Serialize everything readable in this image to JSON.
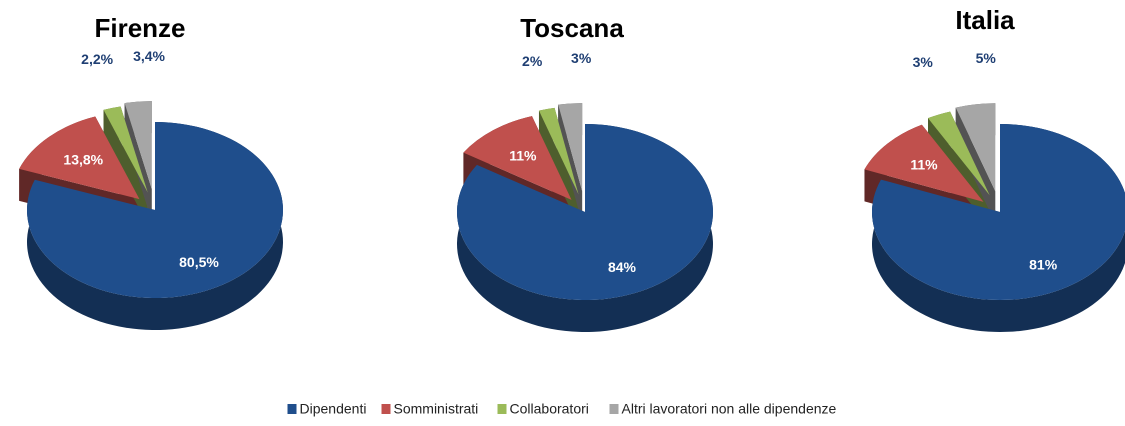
{
  "chart_data": [
    {
      "type": "pie",
      "title": "Firenze",
      "categories": [
        "Dipendenti",
        "Somministrati",
        "Collaboratori",
        "Altri lavoratori non alle dipendenze"
      ],
      "values": [
        80.5,
        13.8,
        2.2,
        3.4
      ],
      "value_labels": [
        "80,5%",
        "13,8%",
        "2,2%",
        "3,4%"
      ],
      "colors": [
        "#1f4e8c",
        "#c0504d",
        "#9bbb59",
        "#a6a6a6"
      ],
      "legend": "bottom"
    },
    {
      "type": "pie",
      "title": "Toscana",
      "categories": [
        "Dipendenti",
        "Somministrati",
        "Collaboratori",
        "Altri lavoratori non alle dipendenze"
      ],
      "values": [
        84,
        11,
        2,
        3
      ],
      "value_labels": [
        "84%",
        "11%",
        "2%",
        "3%"
      ],
      "colors": [
        "#1f4e8c",
        "#c0504d",
        "#9bbb59",
        "#a6a6a6"
      ]
    },
    {
      "type": "pie",
      "title": "Italia",
      "categories": [
        "Dipendenti",
        "Somministrati",
        "Collaboratori",
        "Altri lavoratori non alle dipendenze"
      ],
      "values": [
        81,
        11,
        3,
        5
      ],
      "value_labels": [
        "81%",
        "11%",
        "3%",
        "5%"
      ],
      "colors": [
        "#1f4e8c",
        "#c0504d",
        "#9bbb59",
        "#a6a6a6"
      ]
    }
  ]
}
